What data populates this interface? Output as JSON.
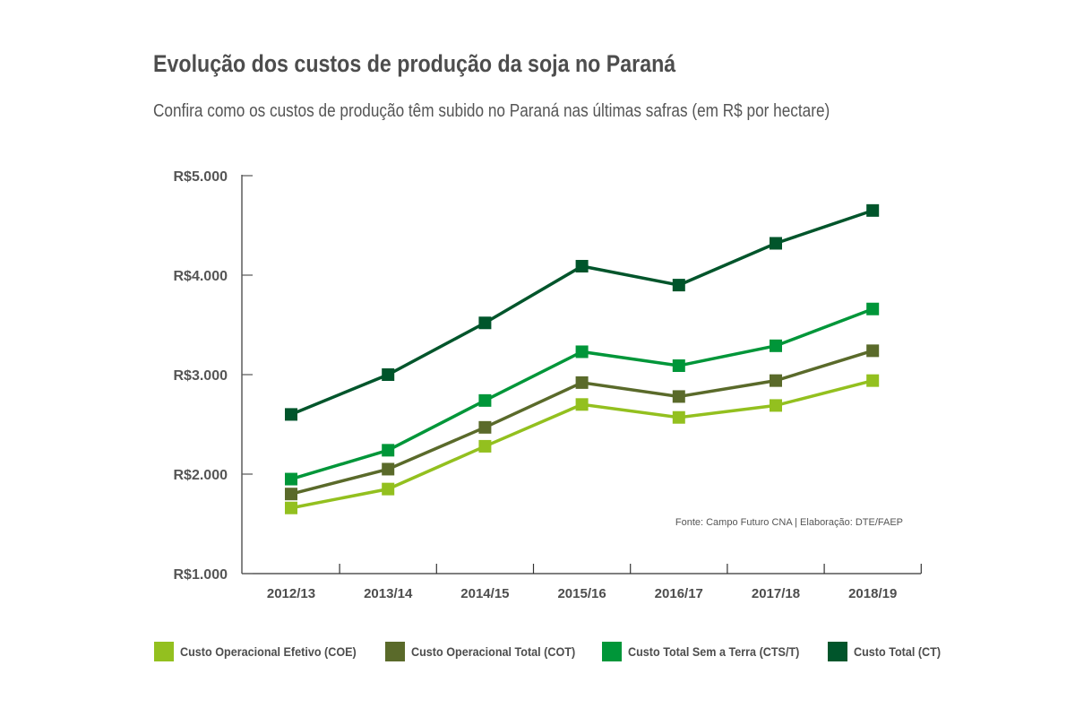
{
  "chart_data": {
    "type": "line",
    "title": "Evolução dos custos de produção da soja no Paraná",
    "subtitle": "Confira como os custos de produção têm subido no Paraná nas últimas safras (em R$ por hectare)",
    "categories": [
      "2012/13",
      "2013/14",
      "2014/15",
      "2015/16",
      "2016/17",
      "2017/18",
      "2018/19"
    ],
    "ylim": [
      1000,
      5000
    ],
    "yticks": [
      1000,
      2000,
      3000,
      4000,
      5000
    ],
    "ytick_labels": [
      "R$1.000",
      "R$2.000",
      "R$3.000",
      "R$4.000",
      "R$5.000"
    ],
    "grid": false,
    "legend_position": "bottom",
    "source": "Fonte: Campo Futuro CNA | Elaboração: DTE/FAEP",
    "series": [
      {
        "name": "Custo Operacional Efetivo (COE)",
        "color": "#93c01f",
        "values": [
          1660,
          1850,
          2280,
          2700,
          2570,
          2690,
          2940
        ]
      },
      {
        "name": "Custo Operacional Total (COT)",
        "color": "#5a6a2a",
        "values": [
          1800,
          2050,
          2470,
          2920,
          2780,
          2940,
          3240
        ]
      },
      {
        "name": "Custo Total Sem a Terra (CTS/T)",
        "color": "#009639",
        "values": [
          1950,
          2240,
          2740,
          3230,
          3090,
          3290,
          3660
        ]
      },
      {
        "name": "Custo Total (CT)",
        "color": "#00552b",
        "values": [
          2600,
          3000,
          3520,
          4090,
          3900,
          4320,
          4650
        ]
      }
    ]
  }
}
